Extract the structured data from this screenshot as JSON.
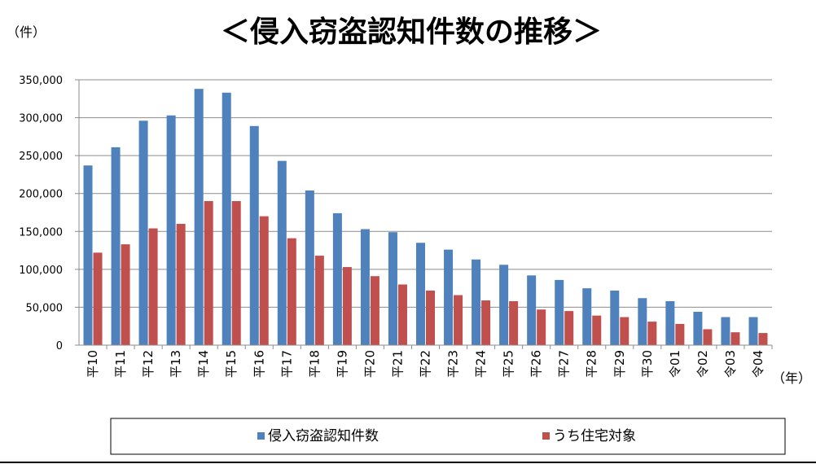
{
  "chart_data": {
    "type": "bar",
    "title": "＜侵入窃盗認知件数の推移＞",
    "ylabel": "（件）",
    "xlabel": "（年）",
    "ylim": [
      0,
      350000
    ],
    "yticks": [
      "0",
      "50,000",
      "100,000",
      "150,000",
      "200,000",
      "250,000",
      "300,000",
      "350,000"
    ],
    "grid": true,
    "legend_position": "bottom",
    "categories": [
      "平10",
      "平11",
      "平12",
      "平13",
      "平14",
      "平15",
      "平16",
      "平17",
      "平18",
      "平19",
      "平20",
      "平21",
      "平22",
      "平23",
      "平24",
      "平25",
      "平26",
      "平27",
      "平28",
      "平29",
      "平30",
      "令01",
      "令02",
      "令03",
      "令04"
    ],
    "series": [
      {
        "name": "侵入窃盗認知件数",
        "color": "#4F81BD",
        "values": [
          237000,
          261000,
          296000,
          303000,
          338000,
          333000,
          289000,
          243000,
          204000,
          174000,
          153000,
          149000,
          135000,
          126000,
          113000,
          106000,
          92000,
          86000,
          75000,
          72000,
          62000,
          58000,
          44000,
          37000,
          37000
        ]
      },
      {
        "name": "うち住宅対象",
        "color": "#C0504D",
        "values": [
          122000,
          133000,
          154000,
          160000,
          190000,
          190000,
          170000,
          141000,
          118000,
          103000,
          91000,
          80000,
          72000,
          66000,
          59000,
          58000,
          47000,
          45000,
          39000,
          37000,
          31000,
          28000,
          21000,
          17000,
          16000
        ]
      }
    ]
  }
}
